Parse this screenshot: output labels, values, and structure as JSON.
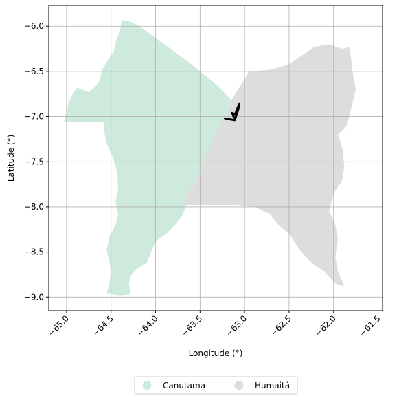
{
  "chart_data": {
    "type": "map",
    "xlabel": "Longitude (°)",
    "ylabel": "Latitude (°)",
    "xlim": [
      -65.2,
      -61.45
    ],
    "ylim": [
      -9.15,
      -5.77
    ],
    "x_ticks": [
      -65.0,
      -64.5,
      -64.0,
      -63.5,
      -63.0,
      -62.5,
      -62.0,
      -61.5
    ],
    "x_tick_labels": [
      "−65.0",
      "−64.5",
      "−64.0",
      "−63.5",
      "−63.0",
      "−62.5",
      "−62.0",
      "−61.5"
    ],
    "y_ticks": [
      -6.0,
      -6.5,
      -7.0,
      -7.5,
      -8.0,
      -8.5,
      -9.0
    ],
    "y_tick_labels": [
      "−6.0",
      "−6.5",
      "−7.0",
      "−7.5",
      "−8.0",
      "−8.5",
      "−9.0"
    ],
    "grid": true,
    "legend_position": "bottom-center",
    "regions": [
      {
        "name": "Canutama",
        "color": "#cdeadc",
        "polygon": [
          [
            -65.03,
            -7.06
          ],
          [
            -65.0,
            -6.95
          ],
          [
            -64.98,
            -6.85
          ],
          [
            -64.93,
            -6.75
          ],
          [
            -64.88,
            -6.68
          ],
          [
            -64.83,
            -6.7
          ],
          [
            -64.75,
            -6.73
          ],
          [
            -64.68,
            -6.67
          ],
          [
            -64.63,
            -6.6
          ],
          [
            -64.6,
            -6.48
          ],
          [
            -64.54,
            -6.38
          ],
          [
            -64.47,
            -6.28
          ],
          [
            -64.44,
            -6.15
          ],
          [
            -64.4,
            -6.05
          ],
          [
            -64.38,
            -5.93
          ],
          [
            -64.28,
            -5.95
          ],
          [
            -64.18,
            -6.0
          ],
          [
            -63.9,
            -6.2
          ],
          [
            -63.6,
            -6.42
          ],
          [
            -63.3,
            -6.66
          ],
          [
            -63.15,
            -6.82
          ],
          [
            -63.2,
            -6.98
          ],
          [
            -63.25,
            -7.05
          ],
          [
            -63.3,
            -7.15
          ],
          [
            -63.38,
            -7.3
          ],
          [
            -63.45,
            -7.5
          ],
          [
            -63.55,
            -7.72
          ],
          [
            -63.62,
            -7.85
          ],
          [
            -63.65,
            -7.97
          ],
          [
            -63.7,
            -8.1
          ],
          [
            -63.78,
            -8.2
          ],
          [
            -63.88,
            -8.3
          ],
          [
            -64.0,
            -8.38
          ],
          [
            -64.05,
            -8.5
          ],
          [
            -64.1,
            -8.62
          ],
          [
            -64.2,
            -8.68
          ],
          [
            -64.27,
            -8.75
          ],
          [
            -64.3,
            -8.85
          ],
          [
            -64.28,
            -8.97
          ],
          [
            -64.4,
            -8.98
          ],
          [
            -64.55,
            -8.96
          ],
          [
            -64.52,
            -8.85
          ],
          [
            -64.5,
            -8.72
          ],
          [
            -64.52,
            -8.6
          ],
          [
            -64.55,
            -8.48
          ],
          [
            -64.52,
            -8.33
          ],
          [
            -64.45,
            -8.2
          ],
          [
            -64.42,
            -8.08
          ],
          [
            -64.45,
            -7.95
          ],
          [
            -64.42,
            -7.8
          ],
          [
            -64.43,
            -7.62
          ],
          [
            -64.48,
            -7.45
          ],
          [
            -64.55,
            -7.3
          ],
          [
            -64.58,
            -7.15
          ],
          [
            -64.58,
            -7.06
          ],
          [
            -65.03,
            -7.06
          ]
        ]
      },
      {
        "name": "Humaitá",
        "color": "#dddddd",
        "polygon": [
          [
            -63.15,
            -6.82
          ],
          [
            -63.02,
            -6.62
          ],
          [
            -62.95,
            -6.5
          ],
          [
            -62.7,
            -6.48
          ],
          [
            -62.5,
            -6.42
          ],
          [
            -62.35,
            -6.32
          ],
          [
            -62.22,
            -6.23
          ],
          [
            -62.05,
            -6.2
          ],
          [
            -61.9,
            -6.25
          ],
          [
            -61.82,
            -6.23
          ],
          [
            -61.8,
            -6.38
          ],
          [
            -61.78,
            -6.55
          ],
          [
            -61.75,
            -6.7
          ],
          [
            -61.8,
            -6.9
          ],
          [
            -61.85,
            -7.1
          ],
          [
            -61.95,
            -7.2
          ],
          [
            -61.9,
            -7.35
          ],
          [
            -61.88,
            -7.55
          ],
          [
            -61.9,
            -7.7
          ],
          [
            -62.0,
            -7.85
          ],
          [
            -62.05,
            -8.05
          ],
          [
            -61.98,
            -8.2
          ],
          [
            -61.95,
            -8.35
          ],
          [
            -61.98,
            -8.55
          ],
          [
            -61.95,
            -8.72
          ],
          [
            -61.88,
            -8.88
          ],
          [
            -61.98,
            -8.85
          ],
          [
            -62.1,
            -8.72
          ],
          [
            -62.25,
            -8.62
          ],
          [
            -62.38,
            -8.48
          ],
          [
            -62.5,
            -8.3
          ],
          [
            -62.62,
            -8.2
          ],
          [
            -62.72,
            -8.08
          ],
          [
            -62.88,
            -8.0
          ],
          [
            -63.2,
            -7.98
          ],
          [
            -63.68,
            -7.98
          ],
          [
            -63.65,
            -7.85
          ],
          [
            -63.55,
            -7.72
          ],
          [
            -63.45,
            -7.5
          ],
          [
            -63.38,
            -7.3
          ],
          [
            -63.3,
            -7.15
          ],
          [
            -63.25,
            -7.05
          ],
          [
            -63.2,
            -6.98
          ],
          [
            -63.15,
            -6.82
          ]
        ]
      }
    ],
    "boundary_line": {
      "color": "#000000",
      "points": [
        [
          -63.22,
          -7.02
        ],
        [
          -63.17,
          -7.03
        ],
        [
          -63.11,
          -7.04
        ],
        [
          -63.09,
          -6.98
        ],
        [
          -63.07,
          -6.92
        ],
        [
          -63.06,
          -6.86
        ],
        [
          -63.09,
          -6.93
        ],
        [
          -63.11,
          -6.98
        ],
        [
          -63.14,
          -6.96
        ],
        [
          -63.12,
          -7.01
        ]
      ]
    },
    "legend": [
      "Canutama",
      "Humaitá"
    ]
  }
}
